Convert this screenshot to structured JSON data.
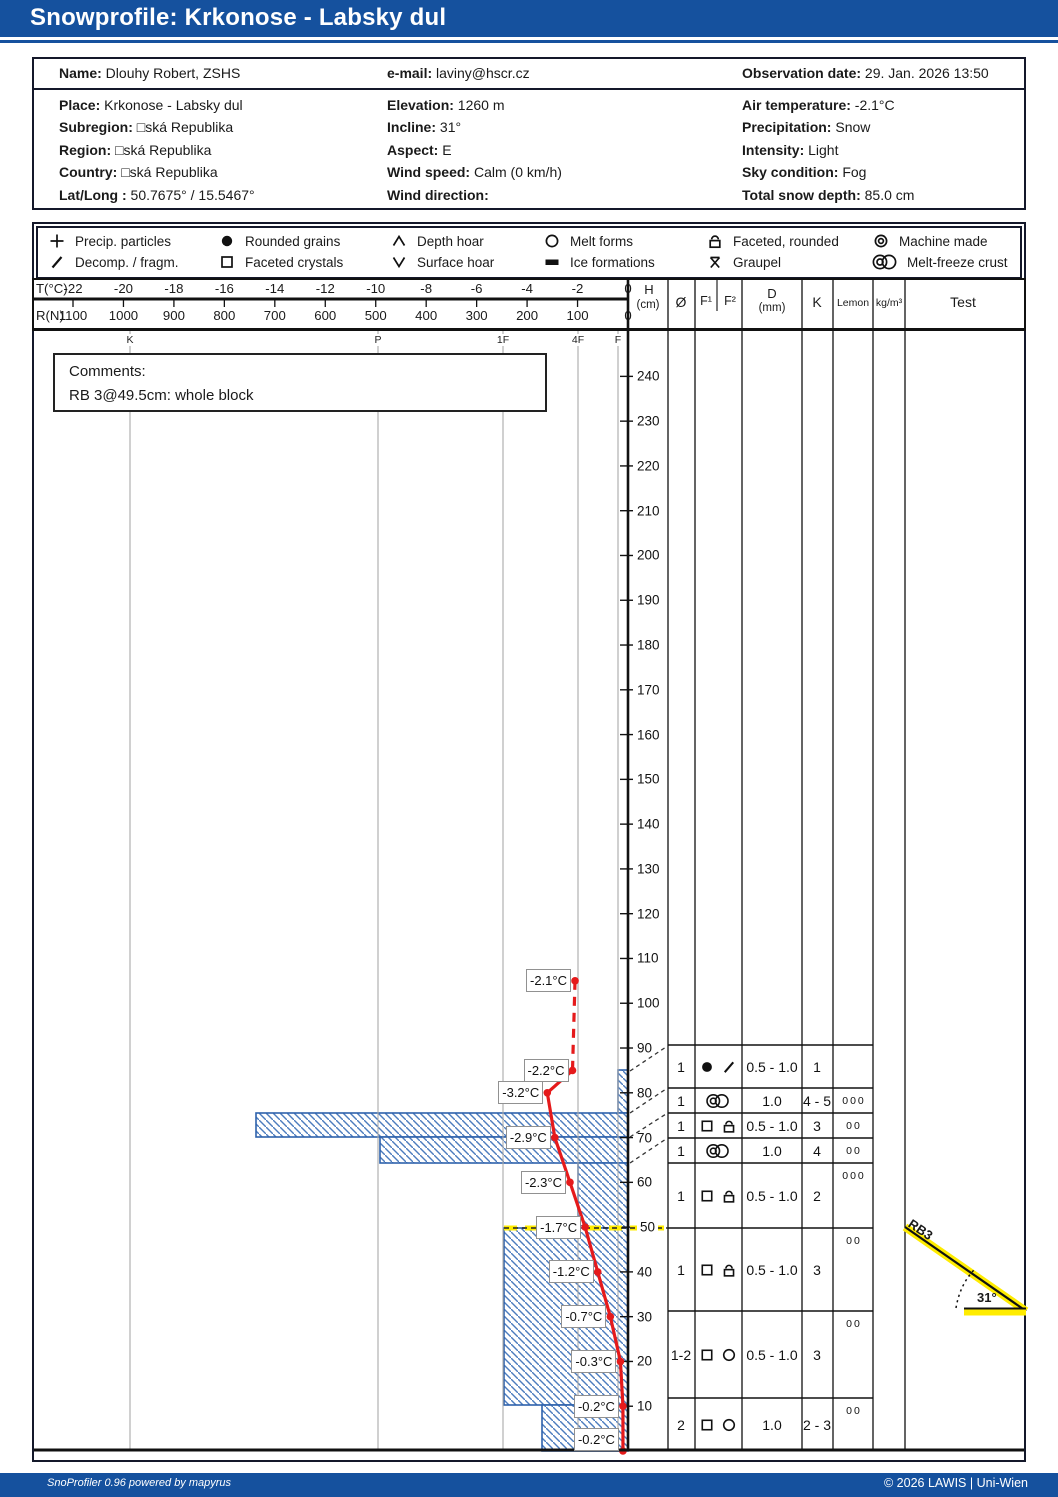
{
  "title": {
    "text": "Snowprofile: Krkonose - Labsky dul"
  },
  "info": {
    "row1": [
      {
        "label": "Name:",
        "value": "Dlouhy Robert, ZSHS"
      },
      {
        "label": "e-mail:",
        "value": "laviny@hscr.cz"
      },
      {
        "label": "Observation date:",
        "value": "29. Jan. 2026 13:50"
      }
    ],
    "columns": [
      [
        {
          "label": "Place:",
          "value": "Krkonose - Labsky dul"
        },
        {
          "label": "Subregion:",
          "value": "□ská Republika"
        },
        {
          "label": "Region:",
          "value": "□ská Republika"
        },
        {
          "label": "Country:",
          "value": "□ská Republika"
        },
        {
          "label": "Lat/Long :",
          "value": "50.7675° / 15.5467°"
        }
      ],
      [
        {
          "label": "Elevation:",
          "value": "1260 m"
        },
        {
          "label": "Incline:",
          "value": "31°"
        },
        {
          "label": "Aspect:",
          "value": "E"
        },
        {
          "label": "Wind speed:",
          "value": "Calm (0 km/h)"
        },
        {
          "label": "Wind direction:",
          "value": ""
        }
      ],
      [
        {
          "label": "Air temperature:",
          "value": "-2.1°C"
        },
        {
          "label": "Precipitation:",
          "value": "Snow"
        },
        {
          "label": "Intensity:",
          "value": "Light"
        },
        {
          "label": "Sky condition:",
          "value": "Fog"
        },
        {
          "label": "Total snow depth:",
          "value": "85.0 cm"
        }
      ]
    ]
  },
  "legend": {
    "rows": [
      [
        {
          "symbol": "PP",
          "label": "Precip. particles"
        },
        {
          "symbol": "RG",
          "label": "Rounded grains"
        },
        {
          "symbol": "DH",
          "label": "Depth hoar"
        },
        {
          "symbol": "MF",
          "label": "Melt forms"
        },
        {
          "symbol": "FCxr",
          "label": "Faceted, rounded"
        },
        {
          "symbol": "MM",
          "label": "Machine made"
        }
      ],
      [
        {
          "symbol": "DF",
          "label": "Decomp. / fragm."
        },
        {
          "symbol": "FC",
          "label": "Faceted crystals"
        },
        {
          "symbol": "SH",
          "label": "Surface hoar"
        },
        {
          "symbol": "IF",
          "label": "Ice formations"
        },
        {
          "symbol": "GP",
          "label": "Graupel"
        },
        {
          "symbol": "MFcr",
          "label": "Melt-freeze crust"
        }
      ]
    ]
  },
  "comments": {
    "heading": "Comments:",
    "text": "RB 3@49.5cm: whole block"
  },
  "chart_data": {
    "type": "snow-profile",
    "temp_axis": {
      "label": "T(°C)",
      "ticks": [
        -22,
        -20,
        -18,
        -16,
        -14,
        -12,
        -10,
        -8,
        -6,
        -4,
        -2,
        0
      ]
    },
    "ram_axis": {
      "label": "R(N)",
      "ticks": [
        1100,
        1000,
        900,
        800,
        700,
        600,
        500,
        400,
        300,
        200,
        100,
        0
      ]
    },
    "depth_axis": {
      "label": "H",
      "unit": "(cm)",
      "ticks": [
        240,
        230,
        220,
        210,
        200,
        190,
        180,
        170,
        160,
        150,
        140,
        130,
        120,
        110,
        100,
        90,
        80,
        70,
        60,
        50,
        40,
        30,
        20,
        10
      ]
    },
    "hand_hardness_marks": [
      "K",
      "P",
      "1F",
      "4F",
      "F"
    ],
    "total_snow_depth_cm": 85.0,
    "column_headers": {
      "size": "Ø",
      "f1": "F¹",
      "f2": "F²",
      "d": "D",
      "d_unit": "(mm)",
      "k": "K",
      "lemon": "Lemon",
      "density": "kg/m³",
      "test": "Test"
    },
    "temperature_profile": [
      {
        "depth_cm": 105,
        "temp_c": -2.1
      },
      {
        "depth_cm": 85,
        "temp_c": -2.2
      },
      {
        "depth_cm": 80,
        "temp_c": -3.2
      },
      {
        "depth_cm": 70,
        "temp_c": -2.9
      },
      {
        "depth_cm": 60,
        "temp_c": -2.3
      },
      {
        "depth_cm": 50,
        "temp_c": -1.7
      },
      {
        "depth_cm": 40,
        "temp_c": -1.2
      },
      {
        "depth_cm": 30,
        "temp_c": -0.7
      },
      {
        "depth_cm": 20,
        "temp_c": -0.3
      },
      {
        "depth_cm": 10,
        "temp_c": -0.2
      },
      {
        "depth_cm": 0,
        "temp_c": -0.2
      }
    ],
    "layers": [
      {
        "top_cm": 85,
        "bottom_cm": 75,
        "hand_hardness": "F",
        "symbols": [
          "RG",
          "DF"
        ],
        "size": "1",
        "diameter_mm": "0.5 - 1.0",
        "k": "1",
        "lemon": ""
      },
      {
        "top_cm": 75,
        "bottom_cm": 70,
        "hand_hardness": "P-K",
        "symbols": [
          "MFcr"
        ],
        "size": "1",
        "diameter_mm": "1.0",
        "k": "4 - 5",
        "lemon": "000"
      },
      {
        "top_cm": 70,
        "bottom_cm": 65,
        "hand_hardness": "P",
        "symbols": [
          "FC",
          "FCxr"
        ],
        "size": "1",
        "diameter_mm": "0.5 - 1.0",
        "k": "3",
        "lemon": "00"
      },
      {
        "top_cm": 65,
        "bottom_cm": 59,
        "hand_hardness": "4F",
        "symbols": [
          "MFcr"
        ],
        "size": "1",
        "diameter_mm": "1.0",
        "k": "4",
        "lemon": "00"
      },
      {
        "top_cm": 59,
        "bottom_cm": 49.5,
        "hand_hardness": "4F",
        "symbols": [
          "FC",
          "FCxr"
        ],
        "size": "1",
        "diameter_mm": "0.5 - 1.0",
        "k": "2",
        "lemon": "000"
      },
      {
        "top_cm": 49.5,
        "bottom_cm": 31,
        "hand_hardness": "1F",
        "symbols": [
          "FC",
          "FCxr"
        ],
        "size": "1",
        "diameter_mm": "0.5 - 1.0",
        "k": "3",
        "lemon": "00"
      },
      {
        "top_cm": 31,
        "bottom_cm": 11,
        "hand_hardness": "1F",
        "symbols": [
          "FC",
          "MF"
        ],
        "size": "1-2",
        "diameter_mm": "0.5 - 1.0",
        "k": "3",
        "lemon": "00"
      },
      {
        "top_cm": 11,
        "bottom_cm": 0,
        "hand_hardness": "4F-1F",
        "symbols": [
          "FC",
          "MF"
        ],
        "size": "2",
        "diameter_mm": "1.0",
        "k": "2 - 3",
        "lemon": "00"
      }
    ],
    "stability_test": {
      "label": "RB3",
      "angle": "31°",
      "failure_depth": "49.5cm"
    },
    "colors": {
      "accent_blue": "#15519e",
      "hatch_blue": "#4c7cbe",
      "bar_border_blue": "#2e62ac",
      "temp_red": "#e51a1b",
      "highlight_yellow": "#ffec00"
    }
  },
  "footer": {
    "left": "SnoProfiler 0.96 powered by mapyrus",
    "right": "© 2026 LAWIS | Uni-Wien"
  }
}
